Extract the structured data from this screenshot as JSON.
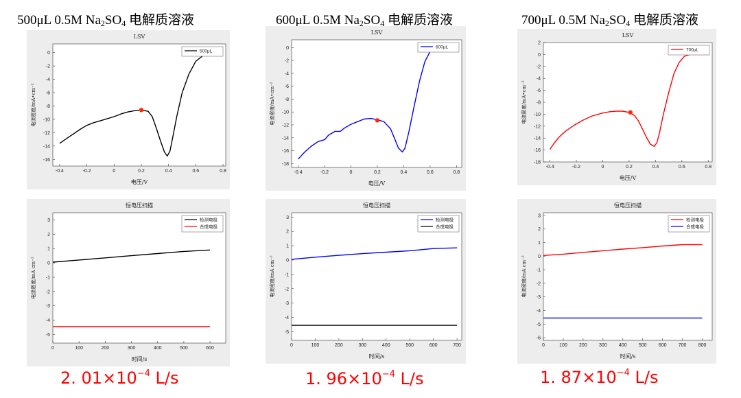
{
  "columns": [
    {
      "title": {
        "pre": "500μL 0.5M Na",
        "sub1": "2",
        "mid": "SO",
        "sub2": "4",
        "post": " 电解质溶液"
      },
      "rate": {
        "mantissa": "2. 01×10",
        "exponent": "−4",
        "unit": " L/s"
      }
    },
    {
      "title": {
        "pre": "600μL 0.5M Na",
        "sub1": "2",
        "mid": "SO",
        "sub2": "4",
        "post": " 电解质溶液"
      },
      "rate": {
        "mantissa": "1. 96×10",
        "exponent": "−4",
        "unit": " L/s"
      }
    },
    {
      "title": {
        "pre": "700μL 0.5M Na",
        "sub1": "2",
        "mid": "SO",
        "sub2": "4",
        "post": " 电解质溶液"
      },
      "rate": {
        "mantissa": "1. 87×10",
        "exponent": "−4",
        "unit": " L/s"
      }
    }
  ],
  "chart_data": [
    {
      "type": "line",
      "title": "LSV",
      "xlabel": "电压/V",
      "ylabel": "电流密度/mA•cm⁻²",
      "xlim": [
        -0.45,
        0.82
      ],
      "ylim": [
        -17,
        1.3
      ],
      "xticks": [
        -0.4,
        -0.2,
        0,
        0.2,
        0.4,
        0.6,
        0.8
      ],
      "yticks": [
        0,
        -2,
        -4,
        -6,
        -8,
        -10,
        -12,
        -14,
        -16
      ],
      "legend": "top-right",
      "series": [
        {
          "name": "500μL",
          "color": "#000000",
          "x": [
            -0.4,
            -0.35,
            -0.3,
            -0.25,
            -0.2,
            -0.15,
            -0.1,
            -0.05,
            0,
            0.05,
            0.1,
            0.15,
            0.2,
            0.25,
            0.28,
            0.31,
            0.34,
            0.37,
            0.39,
            0.41,
            0.43,
            0.46,
            0.5,
            0.55,
            0.6,
            0.65,
            0.7,
            0.8
          ],
          "y": [
            -13.6,
            -12.9,
            -12.2,
            -11.5,
            -10.9,
            -10.5,
            -10.2,
            -9.9,
            -9.6,
            -9.2,
            -8.9,
            -8.7,
            -8.6,
            -8.8,
            -9.6,
            -11.3,
            -13.2,
            -14.9,
            -15.5,
            -14.8,
            -12.8,
            -9.6,
            -6.0,
            -3.2,
            -1.3,
            -0.5,
            -0.3,
            -0.2
          ]
        }
      ],
      "marker": {
        "x": 0.2,
        "y": -8.6,
        "color": "#ff2a00"
      }
    },
    {
      "type": "line",
      "title": "LSV",
      "xlabel": "电压/V",
      "ylabel": "电流密度/mA•cm⁻²",
      "xlim": [
        -0.45,
        0.84
      ],
      "ylim": [
        -18.6,
        1.2
      ],
      "xticks": [
        -0.4,
        -0.2,
        0,
        0.2,
        0.4,
        0.6,
        0.8
      ],
      "yticks": [
        0,
        -2,
        -4,
        -6,
        -8,
        -10,
        -12,
        -14,
        -16,
        -18
      ],
      "legend": "top-right",
      "series": [
        {
          "name": "600μL",
          "color": "#0000ff",
          "x": [
            -0.4,
            -0.35,
            -0.3,
            -0.25,
            -0.2,
            -0.17,
            -0.12,
            -0.08,
            -0.05,
            0,
            0.05,
            0.1,
            0.15,
            0.2,
            0.25,
            0.3,
            0.33,
            0.36,
            0.39,
            0.41,
            0.44,
            0.48,
            0.52,
            0.56,
            0.6,
            0.65,
            0.7,
            0.8
          ],
          "y": [
            -17.3,
            -16.2,
            -15.3,
            -14.6,
            -14.3,
            -13.6,
            -13.0,
            -13.0,
            -12.5,
            -11.9,
            -11.5,
            -11.1,
            -11.0,
            -11.2,
            -11.5,
            -12.6,
            -14.1,
            -15.6,
            -16.2,
            -15.6,
            -13.0,
            -9.0,
            -5.2,
            -2.2,
            -0.6,
            -0.3,
            -0.3,
            -0.3
          ]
        }
      ],
      "marker": {
        "x": 0.2,
        "y": -11.3,
        "color": "#ff2a00"
      }
    },
    {
      "type": "line",
      "title": "LSV",
      "xlabel": "电压/V",
      "ylabel": "电流密度/mA•cm⁻²",
      "xlim": [
        -0.45,
        0.83
      ],
      "ylim": [
        -18,
        2
      ],
      "xticks": [
        -0.4,
        -0.2,
        0,
        0.2,
        0.4,
        0.6,
        0.8
      ],
      "yticks": [
        2,
        0,
        -2,
        -4,
        -6,
        -8,
        -10,
        -12,
        -14,
        -16,
        -18
      ],
      "legend": "top-right",
      "series": [
        {
          "name": "700μL",
          "color": "#ff0000",
          "x": [
            -0.4,
            -0.37,
            -0.33,
            -0.28,
            -0.22,
            -0.15,
            -0.08,
            0,
            0.05,
            0.1,
            0.15,
            0.2,
            0.24,
            0.27,
            0.3,
            0.33,
            0.36,
            0.39,
            0.41,
            0.43,
            0.46,
            0.5,
            0.54,
            0.58,
            0.62,
            0.66,
            0.7,
            0.8
          ],
          "y": [
            -15.9,
            -14.9,
            -13.8,
            -12.8,
            -11.9,
            -11.0,
            -10.3,
            -9.8,
            -9.6,
            -9.5,
            -9.5,
            -9.7,
            -10.2,
            -11.1,
            -12.4,
            -13.8,
            -15.0,
            -15.4,
            -14.8,
            -13.2,
            -10.0,
            -6.4,
            -3.2,
            -1.3,
            -0.3,
            0,
            0,
            0
          ]
        }
      ],
      "marker": {
        "x": 0.21,
        "y": -9.7,
        "color": "#ff2a00"
      }
    },
    {
      "type": "line",
      "title": "恒电压扫描",
      "xlabel": "时间/s",
      "ylabel": "电流密度/mA cm⁻²",
      "xlim": [
        0,
        660
      ],
      "ylim": [
        -5.6,
        3.5
      ],
      "xticks": [
        0,
        100,
        200,
        300,
        400,
        500,
        600
      ],
      "yticks": [
        3,
        2,
        1,
        0,
        -1,
        -2,
        -3,
        -4,
        -5
      ],
      "legend": "top-right",
      "series": [
        {
          "name": "检测电极",
          "color": "#000000",
          "x": [
            0,
            100,
            200,
            300,
            400,
            500,
            600
          ],
          "y": [
            0.05,
            0.2,
            0.35,
            0.5,
            0.65,
            0.8,
            0.9
          ]
        },
        {
          "name": "合成电极",
          "color": "#ff0000",
          "x": [
            0,
            600
          ],
          "y": [
            -4.45,
            -4.45
          ]
        }
      ]
    },
    {
      "type": "line",
      "title": "恒电压扫描",
      "xlabel": "时间/s",
      "ylabel": "电流密度/mA cm⁻²",
      "xlim": [
        0,
        720
      ],
      "ylim": [
        -5.6,
        3.3
      ],
      "xticks": [
        0,
        100,
        200,
        300,
        400,
        500,
        600,
        700
      ],
      "yticks": [
        3,
        2,
        1,
        0,
        -1,
        -2,
        -3,
        -4,
        -5
      ],
      "legend": "top-right",
      "series": [
        {
          "name": "检测电极",
          "color": "#0000ff",
          "x": [
            0,
            100,
            200,
            300,
            400,
            500,
            600,
            700
          ],
          "y": [
            0.05,
            0.2,
            0.33,
            0.45,
            0.55,
            0.65,
            0.8,
            0.85
          ]
        },
        {
          "name": "合成电极",
          "color": "#000000",
          "x": [
            0,
            700
          ],
          "y": [
            -4.55,
            -4.55
          ]
        }
      ]
    },
    {
      "type": "line",
      "title": "恒电压扫描",
      "xlabel": "时间/s",
      "ylabel": "电流密度/mA cm⁻²",
      "xlim": [
        0,
        850
      ],
      "ylim": [
        -6.2,
        3.2
      ],
      "xticks": [
        0,
        100,
        200,
        300,
        400,
        500,
        600,
        700,
        800
      ],
      "yticks": [
        3,
        2,
        1,
        0,
        -1,
        -2,
        -3,
        -4,
        -5,
        -6
      ],
      "legend": "top-right",
      "series": [
        {
          "name": "检测电极",
          "color": "#ff0000",
          "x": [
            0,
            100,
            200,
            300,
            400,
            500,
            600,
            700,
            800
          ],
          "y": [
            0.05,
            0.15,
            0.28,
            0.4,
            0.52,
            0.63,
            0.75,
            0.85,
            0.85
          ]
        },
        {
          "name": "合成电极",
          "color": "#0000ff",
          "x": [
            0,
            800
          ],
          "y": [
            -4.55,
            -4.55
          ]
        }
      ]
    }
  ]
}
